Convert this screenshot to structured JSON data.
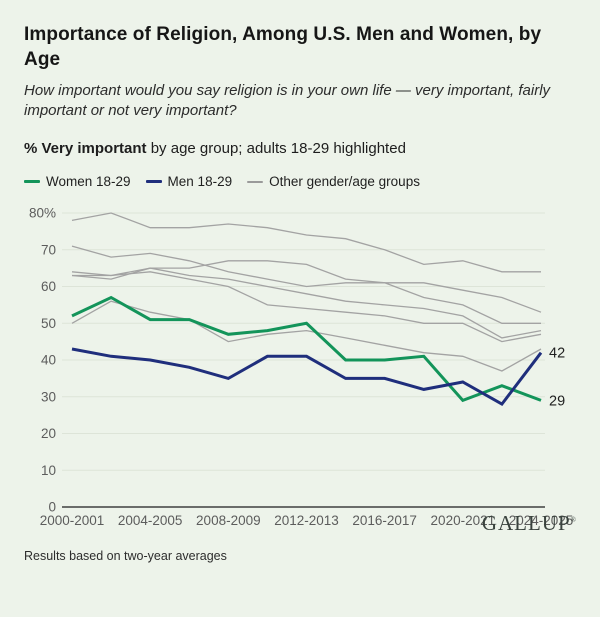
{
  "header": {
    "title": "Importance of Religion, Among U.S. Men and Women, by Age",
    "subtitle": "How important would you say religion is in your own life — very important, fairly important or not very important?",
    "measure_bold": "% Very important",
    "measure_rest": " by age group; adults 18-29 highlighted"
  },
  "legend": {
    "items": [
      {
        "label": "Women 18-29",
        "color": "#13945a",
        "weight": "thick"
      },
      {
        "label": "Men 18-29",
        "color": "#1f2e7c",
        "weight": "thick"
      },
      {
        "label": "Other gender/age groups",
        "color": "#9a9a9a",
        "weight": "thin"
      }
    ]
  },
  "chart_data": {
    "type": "line",
    "title": "Importance of Religion, Among U.S. Men and Women, by Age",
    "x_tick_labels": [
      "2000-2001",
      "2004-2005",
      "2008-2009",
      "2012-2013",
      "2016-2017",
      "2020-2021",
      "2024-2025"
    ],
    "x_tick_indices": [
      0,
      2,
      4,
      6,
      8,
      10,
      12
    ],
    "n_points": 13,
    "y_ticks": [
      {
        "label": "80%",
        "value": 80
      },
      {
        "label": "70",
        "value": 70
      },
      {
        "label": "60",
        "value": 60
      },
      {
        "label": "50",
        "value": 50
      },
      {
        "label": "40",
        "value": 40
      },
      {
        "label": "30",
        "value": 30
      },
      {
        "label": "20",
        "value": 20
      },
      {
        "label": "10",
        "value": 10
      },
      {
        "label": "0",
        "value": 0
      }
    ],
    "ylim": [
      0,
      80
    ],
    "grid": "horizontal",
    "legend_position": "top",
    "series": [
      {
        "name": "Women 18-29",
        "color": "#13945a",
        "width": 3,
        "values": [
          52,
          57,
          51,
          51,
          47,
          48,
          50,
          40,
          40,
          41,
          29,
          33,
          29
        ],
        "end_label": "29"
      },
      {
        "name": "Men 18-29",
        "color": "#1f2e7c",
        "width": 3,
        "values": [
          43,
          41,
          40,
          38,
          35,
          41,
          41,
          35,
          35,
          32,
          34,
          28,
          42
        ],
        "end_label": "42"
      }
    ],
    "other_series": {
      "name": "Other gender/age groups",
      "color": "#a3a3a3",
      "width": 1.3,
      "lines": [
        [
          78,
          80,
          76,
          76,
          77,
          76,
          74,
          73,
          70,
          66,
          67,
          64,
          64
        ],
        [
          71,
          68,
          69,
          67,
          64,
          62,
          60,
          61,
          61,
          61,
          59,
          57,
          53
        ],
        [
          64,
          63,
          65,
          65,
          67,
          67,
          66,
          62,
          61,
          57,
          55,
          50,
          50
        ],
        [
          63,
          62,
          65,
          63,
          62,
          60,
          58,
          56,
          55,
          54,
          52,
          46,
          48
        ],
        [
          63,
          63,
          64,
          62,
          60,
          55,
          54,
          53,
          52,
          50,
          50,
          45,
          47
        ],
        [
          50,
          56,
          53,
          51,
          45,
          47,
          48,
          46,
          44,
          42,
          41,
          37,
          43
        ]
      ]
    },
    "colors": {
      "background": "#edf3ea",
      "grid": "#dde4d8",
      "axis": "#3f3f3f",
      "tick_text": "#5c5c5c",
      "end_label_text": "#1f1f1f"
    }
  },
  "footer": {
    "note": "Results based on two-year averages",
    "logo": "GALLUP",
    "logo_mark": "®"
  }
}
